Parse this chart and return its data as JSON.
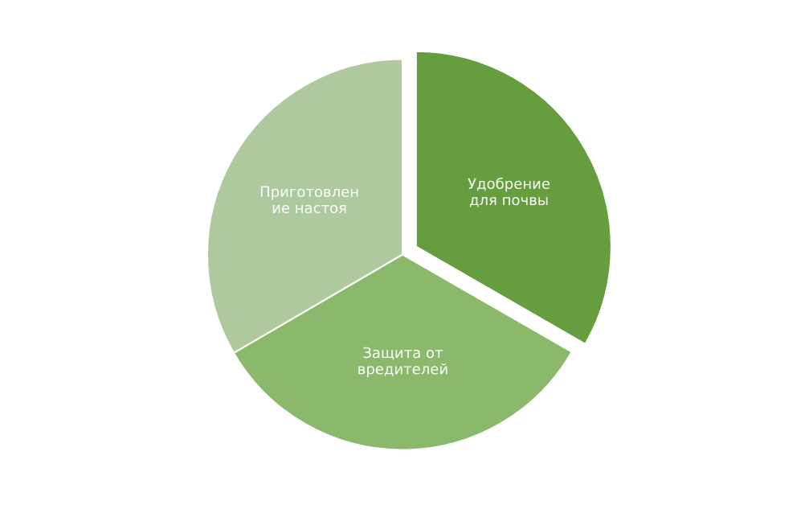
{
  "chart_data": {
    "type": "pie",
    "categories": [
      "Удобрение\nдля почвы",
      "Защита от\nвредителей",
      "Приготовлен\nие настоя"
    ],
    "values": [
      33.3,
      33.3,
      33.4
    ],
    "colors": [
      "#669e3f",
      "#8ab96b",
      "#adc99d"
    ]
  }
}
